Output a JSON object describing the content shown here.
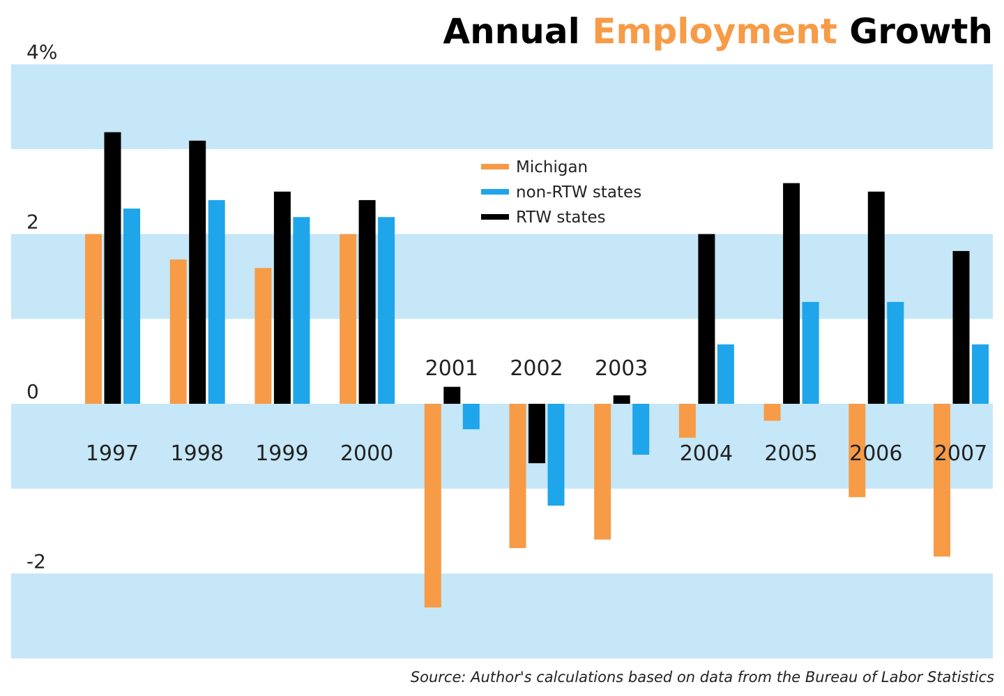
{
  "chart_data": {
    "type": "bar",
    "title_parts": [
      "Annual",
      "Employment",
      "Growth"
    ],
    "source": "Source: Author's calculations based on data from the Bureau of Labor Statistics",
    "categories": [
      "1997",
      "1998",
      "1999",
      "2000",
      "2001",
      "2002",
      "2003",
      "2004",
      "2005",
      "2006",
      "2007"
    ],
    "series": [
      {
        "name": "Michigan",
        "color": "#f79b47",
        "values": [
          2.0,
          1.7,
          1.6,
          2.0,
          -2.4,
          -1.7,
          -1.6,
          -0.4,
          -0.2,
          -1.1,
          -1.8
        ]
      },
      {
        "name": "RTW states",
        "color": "#000000",
        "values": [
          3.2,
          3.1,
          2.5,
          2.4,
          0.2,
          -0.7,
          0.1,
          2.0,
          2.6,
          2.5,
          1.8
        ]
      },
      {
        "name": "non-RTW states",
        "color": "#1ea5ea",
        "values": [
          2.3,
          2.4,
          2.2,
          2.2,
          -0.3,
          -1.2,
          -0.6,
          0.7,
          1.2,
          1.2,
          0.7
        ]
      }
    ],
    "legend_order": [
      "Michigan",
      "non-RTW states",
      "RTW states"
    ],
    "yticks": [
      {
        "value": 4,
        "label": "4%"
      },
      {
        "value": 2,
        "label": "2"
      },
      {
        "value": 0,
        "label": "0"
      },
      {
        "value": -2,
        "label": "-2"
      }
    ],
    "ylim": [
      -3,
      4
    ],
    "grid": "alternating horizontal bands every 1%",
    "band_color": "#c5e7f8",
    "title_accent_color": "#f79b47",
    "legend_position": "center-top",
    "xlabel": "",
    "ylabel": ""
  }
}
